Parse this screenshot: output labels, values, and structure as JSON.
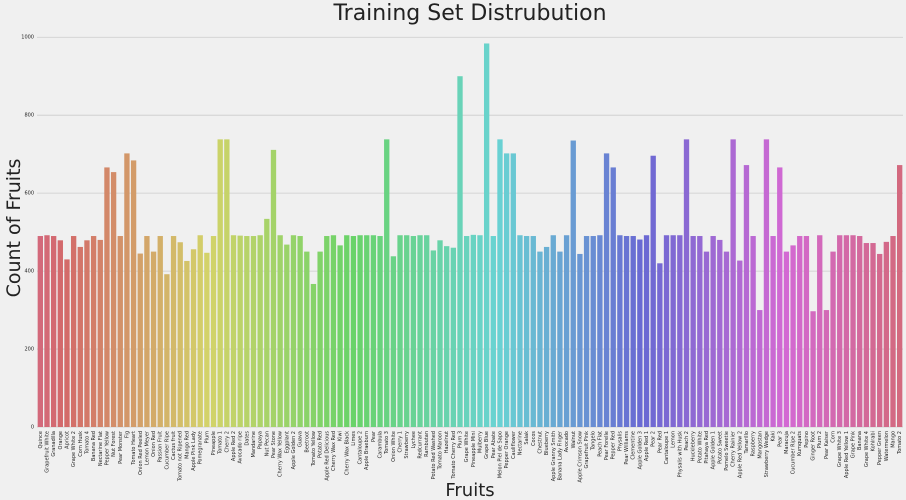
{
  "chart_data": {
    "type": "bar",
    "title": "Training Set Distrubution",
    "xlabel": "Fruits",
    "ylabel": "Count of Fruits",
    "palette": "husl",
    "categories": [
      "Quince",
      "Grapefruit White",
      "Granadilla",
      "Orange",
      "Apricot",
      "Grape White 2",
      "Corn Husk",
      "Tomato 4",
      "Banana Red",
      "Nectarine Flat",
      "Pepper Yellow",
      "Nut Forest",
      "Pear Monster",
      "Fig",
      "Tomato Heart",
      "Onion Red Peeled",
      "Lemon Meyer",
      "Onion Red",
      "Passion Fruit",
      "Cucumber Ripe",
      "Cactus fruit",
      "Tomato not Ripened",
      "Mango Red",
      "Apple Pink Lady",
      "Pomegranate",
      "Plum",
      "Pineapple",
      "Tomato 1",
      "Cherry 2",
      "Apple Red 2",
      "Avocado ripe",
      "Dates",
      "Mandarine",
      "Papaya",
      "Nut Pecan",
      "Pear Stone",
      "Cherry Wax Yellow",
      "Eggplant",
      "Apple Golden 2",
      "Guava",
      "Beetroot",
      "Tomato Yellow",
      "Potato Red",
      "Apple Red Delicious",
      "Cherry Wax Red",
      "Kiwi",
      "Cherry Wax Black",
      "Limes",
      "Cantaloupe 2",
      "Apple Braeburn",
      "Pear",
      "Carambula",
      "Tomato 3",
      "Onion White",
      "Cherry 1",
      "Strawberry",
      "Lychee",
      "Redcurrant",
      "Rambutan",
      "Potato Red Washed",
      "Tomato Maroon",
      "Hazelnut",
      "Tomato Cherry Red",
      "Plum 3",
      "Grape White",
      "Pineapple Mini",
      "Mulberry",
      "Grape Blue",
      "Pear Abate",
      "Melon Piel de Sapo",
      "Pepper Orange",
      "Cauliflower",
      "Nectarine",
      "Salak",
      "Cocos",
      "Chestnut",
      "Blueberry",
      "Apple Granny Smith",
      "Banana Lady Finger",
      "Avocado",
      "Walnut",
      "Apple Crimson Snow",
      "Grapefruit Pink",
      "Tangelo",
      "Peach Flat",
      "Pear Forelle",
      "Pepper Red",
      "Physalis",
      "Pear Williams",
      "Clementine",
      "Apple Golden 3",
      "Apple Red 1",
      "Pear 2",
      "Pear Red",
      "Cantaloupe 1",
      "Lemon",
      "Physalis with Husk",
      "Peach 2",
      "Huckleberry",
      "Potato White",
      "Pitahaya Red",
      "Apple Golden 1",
      "Potato Sweet",
      "Pomelo Sweetie",
      "Cherry Rainier",
      "Apple Red Yellow 2",
      "Tamarillo",
      "Raspberry",
      "Mangostan",
      "Strawberry Wedge",
      "Kaki",
      "Pear 3",
      "Maracuja",
      "Cucumber Ripe 2",
      "Kumquats",
      "Pepino",
      "Ginger Root",
      "Plum 2",
      "Pear Kaiser",
      "Corn",
      "Grape White 3",
      "Apple Red Yellow 1",
      "Grape Pink",
      "Banana",
      "Grape White 4",
      "Kohlrabi",
      "Pepper Green",
      "Watermelon",
      "Mango",
      "Tomato 2"
    ],
    "values": [
      490,
      492,
      490,
      479,
      430,
      490,
      462,
      479,
      490,
      480,
      666,
      654,
      490,
      702,
      684,
      445,
      490,
      450,
      490,
      392,
      490,
      474,
      426,
      456,
      492,
      447,
      490,
      738,
      738,
      492,
      491,
      490,
      490,
      492,
      534,
      711,
      492,
      468,
      492,
      490,
      450,
      367,
      450,
      490,
      492,
      466,
      492,
      490,
      492,
      492,
      492,
      490,
      738,
      438,
      492,
      492,
      490,
      492,
      492,
      453,
      479,
      464,
      460,
      900,
      490,
      493,
      492,
      984,
      490,
      738,
      702,
      702,
      492,
      490,
      490,
      450,
      462,
      492,
      450,
      492,
      735,
      444,
      490,
      490,
      492,
      702,
      666,
      492,
      490,
      490,
      481,
      492,
      696,
      420,
      492,
      492,
      492,
      738,
      490,
      490,
      450,
      490,
      480,
      450,
      738,
      427,
      672,
      490,
      300,
      738,
      490,
      666,
      450,
      466,
      490,
      490,
      297,
      492,
      300,
      450,
      492,
      492,
      492,
      490,
      472,
      472,
      444,
      475,
      490,
      672
    ],
    "ylim": [
      0,
      1035
    ],
    "yticks": [
      0,
      200,
      400,
      600,
      800,
      1000
    ],
    "grid": true
  }
}
